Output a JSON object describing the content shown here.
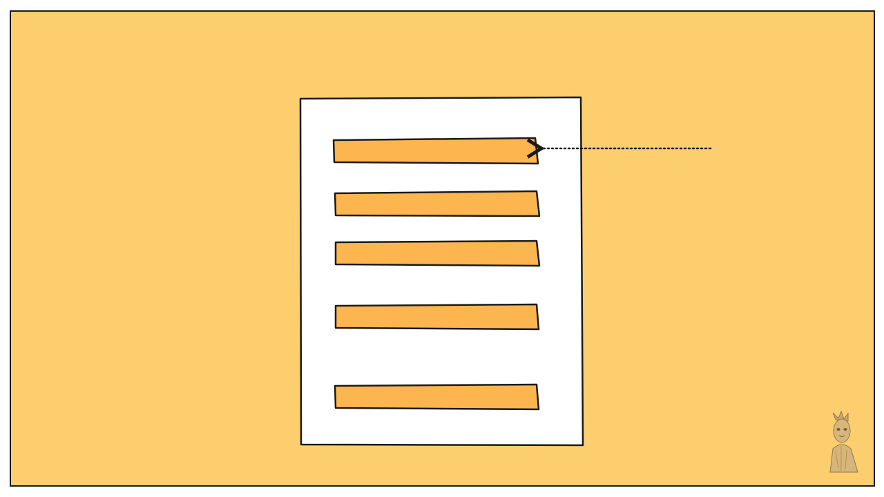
{
  "colors": {
    "background": "#FDCE6E",
    "document": "#FFFFFF",
    "bar_fill": "#FDB54F",
    "outline": "#1A1A1A",
    "arrow": "#1A1A1A"
  },
  "document": {
    "bars": [
      {
        "id": "bar-1",
        "highlighted": true
      },
      {
        "id": "bar-2",
        "highlighted": false
      },
      {
        "id": "bar-3",
        "highlighted": false
      },
      {
        "id": "bar-4",
        "highlighted": false
      },
      {
        "id": "bar-5",
        "highlighted": false
      }
    ]
  },
  "pointer": {
    "style": "dotted",
    "direction": "left",
    "target": "bar-1"
  },
  "mascot": {
    "icon": "tree-character-icon"
  }
}
